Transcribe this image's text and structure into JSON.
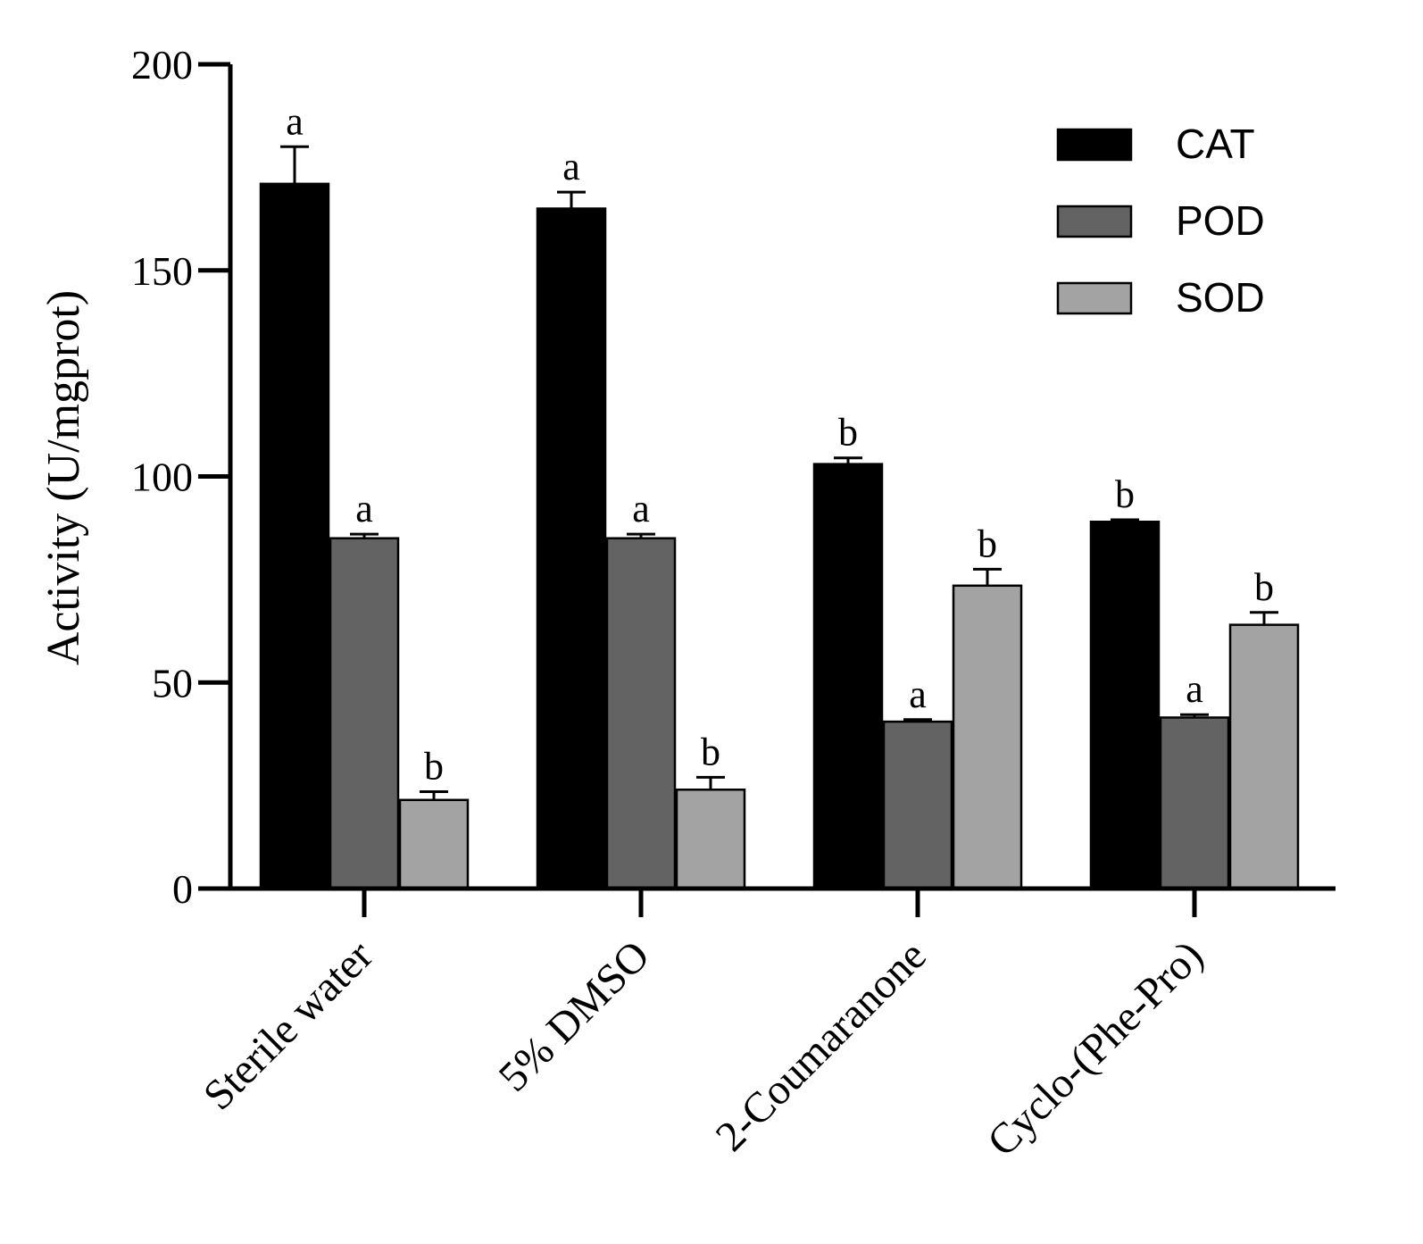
{
  "chart_data": {
    "type": "bar",
    "title": "",
    "xlabel": "",
    "ylabel": "Activity (U/mgprot)",
    "ylim": [
      0,
      200
    ],
    "yticks": [
      0,
      50,
      100,
      150,
      200
    ],
    "ytick_labels": [
      "0",
      "50",
      "100",
      "150",
      "200"
    ],
    "categories": [
      "Sterile water",
      "5% DMSO",
      "2-Coumaranone",
      "Cyclo-(Phe-Pro)"
    ],
    "legend_position": "top-right",
    "grid": false,
    "series": [
      {
        "name": "CAT",
        "color": "#000000",
        "values": [
          171,
          165,
          103,
          89
        ],
        "errors": [
          9,
          4,
          1.5,
          0.5
        ],
        "letters": [
          "a",
          "a",
          "b",
          "b"
        ]
      },
      {
        "name": "POD",
        "color": "#636363",
        "values": [
          85,
          85,
          40.5,
          41.5
        ],
        "errors": [
          1,
          1,
          0.5,
          0.7
        ],
        "letters": [
          "a",
          "a",
          "a",
          "a"
        ]
      },
      {
        "name": "SOD",
        "color": "#a3a3a3",
        "values": [
          21.5,
          24,
          73.5,
          64
        ],
        "errors": [
          2,
          3,
          4,
          3
        ],
        "letters": [
          "b",
          "b",
          "b",
          "b"
        ]
      }
    ]
  }
}
